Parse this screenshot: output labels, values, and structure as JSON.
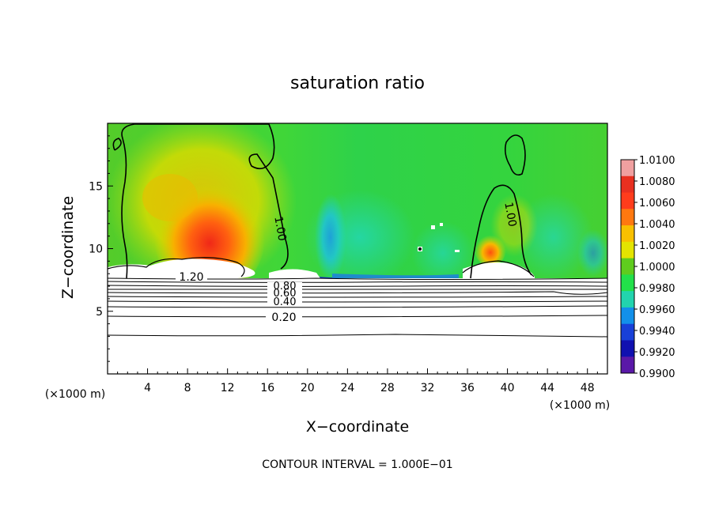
{
  "chart_data": {
    "type": "heatmap",
    "title": "saturation ratio",
    "xlabel": "X−coordinate",
    "ylabel": "Z−coordinate",
    "x_unit": "(×1000 m)",
    "footer": "CONTOUR INTERVAL = 1.000E−01",
    "xlim": [
      0,
      50
    ],
    "ylim": [
      0,
      20
    ],
    "x_ticks": [
      4,
      8,
      12,
      16,
      20,
      24,
      28,
      32,
      36,
      40,
      44,
      48
    ],
    "y_ticks": [
      5,
      10,
      15
    ],
    "colorbar": {
      "range": [
        0.99,
        1.01
      ],
      "labels": [
        "1.0100",
        "1.0080",
        "1.0060",
        "1.0040",
        "1.0020",
        "1.0000",
        "0.9980",
        "0.9960",
        "0.9940",
        "0.9920",
        "0.9900"
      ],
      "colors": [
        "#f0a0a0",
        "#e83020",
        "#ff3c1c",
        "#ff7810",
        "#f8c000",
        "#e4e400",
        "#5fcc1e",
        "#22e04a",
        "#22d4ae",
        "#1290ea",
        "#1840d8",
        "#1010b0",
        "#5a18a8"
      ]
    },
    "contour_labels": [
      {
        "text": "1.20",
        "x": 15,
        "z": 7.9
      },
      {
        "text": "1.00",
        "x": 20.5,
        "z": 12
      },
      {
        "text": "1.00",
        "x": 51,
        "z": 12.5
      },
      {
        "text": "0.80",
        "x": 21,
        "z": 7.2
      },
      {
        "text": "0.60",
        "x": 21,
        "z": 6.7
      },
      {
        "text": "0.40",
        "x": 20.5,
        "z": 5.9
      },
      {
        "text": "0.20",
        "x": 20.5,
        "z": 4.6
      }
    ],
    "contour_levels": [
      0.2,
      0.4,
      0.6,
      0.8,
      1.0,
      1.2
    ]
  }
}
